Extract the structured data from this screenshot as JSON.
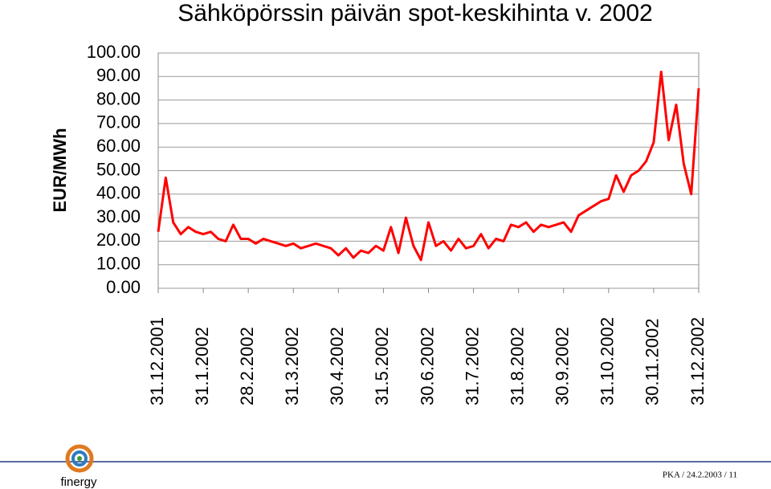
{
  "chart_data": {
    "type": "line",
    "title": "Sähköpörssin päivän spot-keskihinta v. 2002",
    "y_label": "EUR/MWh",
    "categories": [
      "31.12.2001",
      null,
      null,
      null,
      null,
      null,
      "31.1.2002",
      null,
      null,
      null,
      null,
      null,
      "28.2.2002",
      null,
      null,
      null,
      null,
      null,
      "31.3.2002",
      null,
      null,
      null,
      null,
      null,
      "30.4.2002",
      null,
      null,
      null,
      null,
      null,
      "31.5.2002",
      null,
      null,
      null,
      null,
      null,
      "30.6.2002",
      null,
      null,
      null,
      null,
      null,
      "31.7.2002",
      null,
      null,
      null,
      null,
      null,
      "31.8.2002",
      null,
      null,
      null,
      null,
      null,
      "30.9.2002",
      null,
      null,
      null,
      null,
      null,
      "31.10.2002",
      null,
      null,
      null,
      null,
      null,
      "30.11.2002",
      null,
      null,
      null,
      null,
      null,
      "31.12.2002"
    ],
    "values": [
      24,
      47,
      28,
      23,
      26,
      24,
      23,
      24,
      21,
      20,
      27,
      21,
      21,
      19,
      21,
      20,
      19,
      18,
      19,
      17,
      18,
      19,
      18,
      17,
      14,
      17,
      13,
      16,
      15,
      18,
      16,
      26,
      15,
      30,
      18,
      12,
      28,
      18,
      20,
      16,
      21,
      17,
      18,
      23,
      17,
      21,
      20,
      27,
      26,
      28,
      24,
      27,
      26,
      27,
      28,
      24,
      31,
      33,
      35,
      37,
      38,
      48,
      41,
      48,
      50,
      54,
      62,
      92,
      63,
      78,
      53,
      40,
      85
    ],
    "color": "#ff0000",
    "ylim": [
      0,
      100
    ],
    "yticks": [
      {
        "value": 0,
        "label": "0.00"
      },
      {
        "value": 10,
        "label": "10.00"
      },
      {
        "value": 20,
        "label": "20.00"
      },
      {
        "value": 30,
        "label": "30.00"
      },
      {
        "value": 40,
        "label": "40.00"
      },
      {
        "value": 50,
        "label": "50.00"
      },
      {
        "value": 60,
        "label": "60.00"
      },
      {
        "value": 70,
        "label": "70.00"
      },
      {
        "value": 80,
        "label": "80.00"
      },
      {
        "value": 90,
        "label": "90.00"
      },
      {
        "value": 100,
        "label": "100.00"
      }
    ],
    "grid": true
  },
  "logo": "finergy",
  "footer": "PKA / 24.2.2003 / 11"
}
